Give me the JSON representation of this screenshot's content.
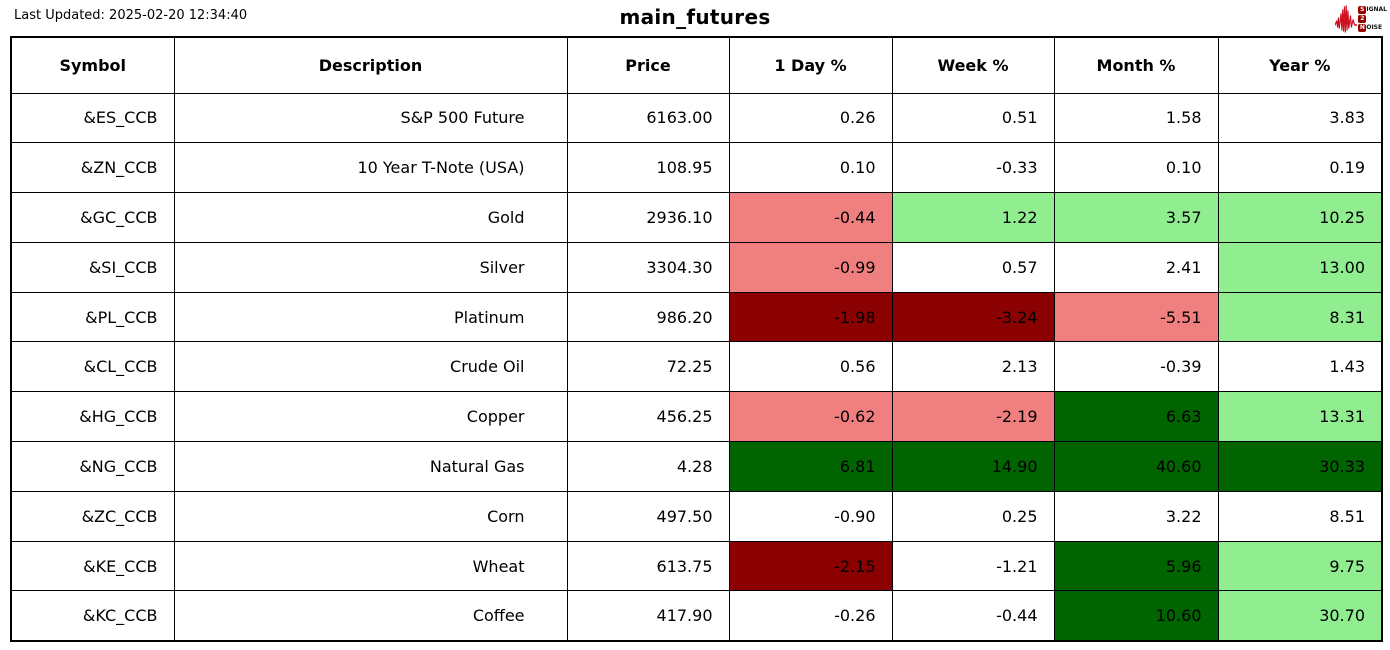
{
  "header": {
    "last_updated": "Last Updated: 2025-02-20 12:34:40",
    "title": "main_futures"
  },
  "logo": {
    "name": "signal-2-noise",
    "line1_badge": "S",
    "line1_rest": "IGNAL",
    "line2_badge": "2",
    "line2_rest": "",
    "line3_badge": "N",
    "line3_rest": "OISE",
    "badge_color": "#990000",
    "waveform_color": "#cc1122"
  },
  "colors": {
    "strong_gain": "#006400",
    "mild_gain": "#90ee90",
    "strong_loss": "#8b0000",
    "mild_loss": "#f08080",
    "neutral": "#ffffff",
    "border": "#000000"
  },
  "chart_data": {
    "type": "table",
    "title": "main_futures",
    "columns": [
      "Symbol",
      "Description",
      "Price",
      "1 Day %",
      "Week %",
      "Month %",
      "Year %"
    ],
    "rows": [
      {
        "symbol": "&ES_CCB",
        "description": "S&P 500 Future",
        "price": "6163.00",
        "changes": [
          {
            "value": "0.26",
            "bg": "#ffffff"
          },
          {
            "value": "0.51",
            "bg": "#ffffff"
          },
          {
            "value": "1.58",
            "bg": "#ffffff"
          },
          {
            "value": "3.83",
            "bg": "#ffffff"
          }
        ]
      },
      {
        "symbol": "&ZN_CCB",
        "description": "10 Year T-Note (USA)",
        "price": "108.95",
        "changes": [
          {
            "value": "0.10",
            "bg": "#ffffff"
          },
          {
            "value": "-0.33",
            "bg": "#ffffff"
          },
          {
            "value": "0.10",
            "bg": "#ffffff"
          },
          {
            "value": "0.19",
            "bg": "#ffffff"
          }
        ]
      },
      {
        "symbol": "&GC_CCB",
        "description": "Gold",
        "price": "2936.10",
        "changes": [
          {
            "value": "-0.44",
            "bg": "#f08080"
          },
          {
            "value": "1.22",
            "bg": "#90ee90"
          },
          {
            "value": "3.57",
            "bg": "#90ee90"
          },
          {
            "value": "10.25",
            "bg": "#90ee90"
          }
        ]
      },
      {
        "symbol": "&SI_CCB",
        "description": "Silver",
        "price": "3304.30",
        "changes": [
          {
            "value": "-0.99",
            "bg": "#f08080"
          },
          {
            "value": "0.57",
            "bg": "#ffffff"
          },
          {
            "value": "2.41",
            "bg": "#ffffff"
          },
          {
            "value": "13.00",
            "bg": "#90ee90"
          }
        ]
      },
      {
        "symbol": "&PL_CCB",
        "description": "Platinum",
        "price": "986.20",
        "changes": [
          {
            "value": "-1.98",
            "bg": "#8b0000"
          },
          {
            "value": "-3.24",
            "bg": "#8b0000"
          },
          {
            "value": "-5.51",
            "bg": "#f08080"
          },
          {
            "value": "8.31",
            "bg": "#90ee90"
          }
        ]
      },
      {
        "symbol": "&CL_CCB",
        "description": "Crude Oil",
        "price": "72.25",
        "changes": [
          {
            "value": "0.56",
            "bg": "#ffffff"
          },
          {
            "value": "2.13",
            "bg": "#ffffff"
          },
          {
            "value": "-0.39",
            "bg": "#ffffff"
          },
          {
            "value": "1.43",
            "bg": "#ffffff"
          }
        ]
      },
      {
        "symbol": "&HG_CCB",
        "description": "Copper",
        "price": "456.25",
        "changes": [
          {
            "value": "-0.62",
            "bg": "#f08080"
          },
          {
            "value": "-2.19",
            "bg": "#f08080"
          },
          {
            "value": "6.63",
            "bg": "#006400"
          },
          {
            "value": "13.31",
            "bg": "#90ee90"
          }
        ]
      },
      {
        "symbol": "&NG_CCB",
        "description": "Natural Gas",
        "price": "4.28",
        "changes": [
          {
            "value": "6.81",
            "bg": "#006400"
          },
          {
            "value": "14.90",
            "bg": "#006400"
          },
          {
            "value": "40.60",
            "bg": "#006400"
          },
          {
            "value": "30.33",
            "bg": "#006400"
          }
        ]
      },
      {
        "symbol": "&ZC_CCB",
        "description": "Corn",
        "price": "497.50",
        "changes": [
          {
            "value": "-0.90",
            "bg": "#ffffff"
          },
          {
            "value": "0.25",
            "bg": "#ffffff"
          },
          {
            "value": "3.22",
            "bg": "#ffffff"
          },
          {
            "value": "8.51",
            "bg": "#ffffff"
          }
        ]
      },
      {
        "symbol": "&KE_CCB",
        "description": "Wheat",
        "price": "613.75",
        "changes": [
          {
            "value": "-2.15",
            "bg": "#8b0000"
          },
          {
            "value": "-1.21",
            "bg": "#ffffff"
          },
          {
            "value": "5.96",
            "bg": "#006400"
          },
          {
            "value": "9.75",
            "bg": "#90ee90"
          }
        ]
      },
      {
        "symbol": "&KC_CCB",
        "description": "Coffee",
        "price": "417.90",
        "changes": [
          {
            "value": "-0.26",
            "bg": "#ffffff"
          },
          {
            "value": "-0.44",
            "bg": "#ffffff"
          },
          {
            "value": "10.60",
            "bg": "#006400"
          },
          {
            "value": "30.70",
            "bg": "#90ee90"
          }
        ]
      }
    ]
  }
}
